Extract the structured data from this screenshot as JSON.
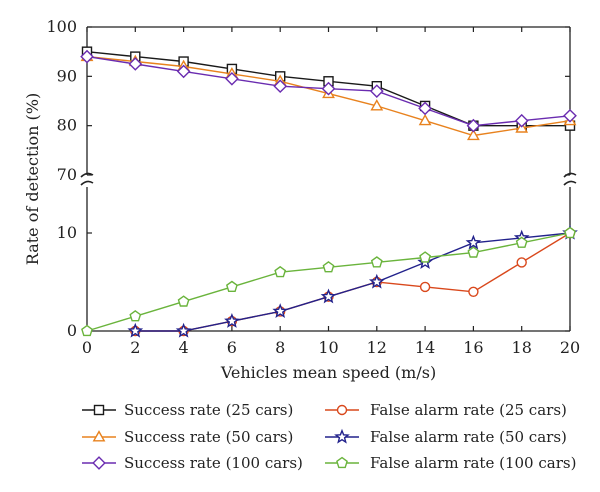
{
  "chart_data": {
    "type": "line",
    "xlabel": "Vehicles mean speed (m/s)",
    "ylabel": "Rate of detection (%)",
    "x": [
      0,
      2,
      4,
      6,
      8,
      10,
      12,
      14,
      16,
      18,
      20
    ],
    "x_ticks": [
      "0",
      "2",
      "4",
      "6",
      "8",
      "10",
      "12",
      "14",
      "16",
      "18",
      "20"
    ],
    "xlim": [
      0,
      20
    ],
    "y_axis_broken": true,
    "y_segments": [
      {
        "range": [
          0,
          15
        ],
        "ticks": [
          "0",
          "10"
        ]
      },
      {
        "range": [
          70,
          100
        ],
        "ticks": [
          "70",
          "80",
          "90",
          "100"
        ]
      }
    ],
    "grid": false,
    "legend_position": "bottom",
    "series": [
      {
        "name": "Success rate (25 cars)",
        "marker": "square",
        "color": "#1a1a1a",
        "values": [
          95,
          94,
          93,
          91.5,
          90,
          89,
          88,
          84,
          80,
          80,
          80
        ]
      },
      {
        "name": "Success rate (50 cars)",
        "marker": "triangle",
        "color": "#e8821e",
        "values": [
          94,
          93,
          92,
          90.5,
          89,
          86.5,
          84,
          81,
          78,
          79.5,
          81
        ]
      },
      {
        "name": "Success rate (100 cars)",
        "marker": "diamond",
        "color": "#6a2cb0",
        "values": [
          94,
          92.5,
          91,
          89.5,
          88,
          87.5,
          87,
          83.5,
          80,
          81,
          82
        ]
      },
      {
        "name": "False alarm rate (25 cars)",
        "marker": "circle",
        "color": "#d9481c",
        "values": [
          null,
          0,
          0,
          1,
          2,
          3.5,
          5,
          4.5,
          4,
          7,
          10
        ]
      },
      {
        "name": "False alarm rate (50 cars)",
        "marker": "star",
        "color": "#22228c",
        "values": [
          null,
          0,
          0,
          1,
          2,
          3.5,
          5,
          7,
          9,
          9.5,
          10
        ]
      },
      {
        "name": "False alarm rate (100 cars)",
        "marker": "pentagon",
        "color": "#6ab43c",
        "values": [
          0,
          1.5,
          3,
          4.5,
          6,
          6.5,
          7,
          7.5,
          8,
          9,
          10
        ]
      }
    ]
  }
}
